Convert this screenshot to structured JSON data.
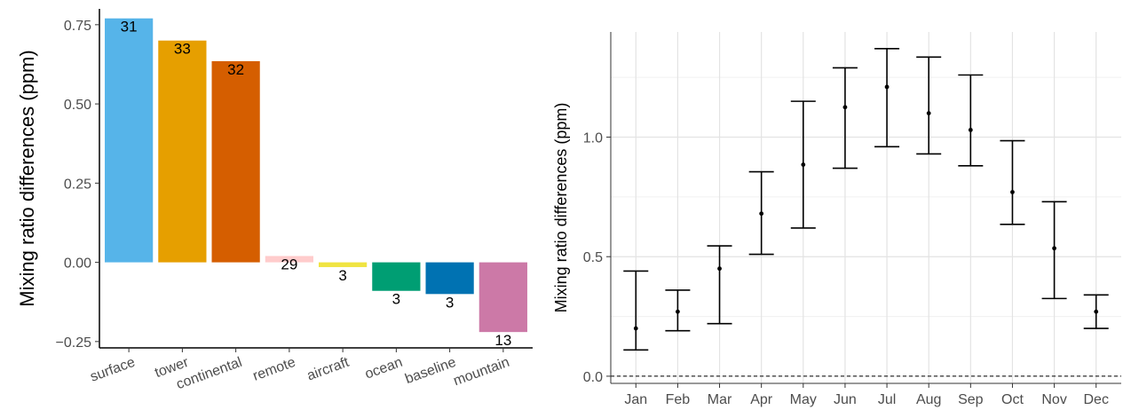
{
  "chart_data": [
    {
      "type": "bar",
      "ylabel": "Mixing ratio differences (ppm)",
      "ylim": [
        -0.27,
        0.8
      ],
      "yticks": [
        -0.25,
        0.0,
        0.25,
        0.5,
        0.75
      ],
      "ytick_labels": [
        "−0.25",
        "0.00",
        "0.25",
        "0.50",
        "0.75"
      ],
      "grid": false,
      "categories": [
        "surface",
        "tower",
        "continental",
        "remote",
        "aircraft",
        "ocean",
        "baseline",
        "mountain"
      ],
      "values": [
        0.77,
        0.7,
        0.635,
        0.02,
        -0.015,
        -0.09,
        -0.1,
        -0.22
      ],
      "counts": [
        "31",
        "33",
        "32",
        "29",
        "3",
        "3",
        "3",
        "13"
      ],
      "colors": [
        "#56B4E9",
        "#E69F00",
        "#D55E00",
        "#FFCCCC",
        "#F0E442",
        "#009E73",
        "#0072B2",
        "#CC79A7"
      ]
    },
    {
      "type": "errorbar",
      "ylabel": "Mixing ratio differences (ppm)",
      "ylim": [
        -0.03,
        1.44
      ],
      "yticks": [
        0.0,
        0.5,
        1.0
      ],
      "ytick_labels": [
        "0.0",
        "0.5",
        "1.0"
      ],
      "grid": true,
      "reference_line": 0.0,
      "categories": [
        "Jan",
        "Feb",
        "Mar",
        "Apr",
        "May",
        "Jun",
        "Jul",
        "Aug",
        "Sep",
        "Oct",
        "Nov",
        "Dec"
      ],
      "mean": [
        0.2,
        0.27,
        0.45,
        0.68,
        0.885,
        1.125,
        1.21,
        1.1,
        1.03,
        0.77,
        0.535,
        0.27
      ],
      "lower": [
        0.11,
        0.19,
        0.22,
        0.51,
        0.62,
        0.87,
        0.96,
        0.93,
        0.88,
        0.635,
        0.325,
        0.2
      ],
      "upper": [
        0.44,
        0.36,
        0.545,
        0.855,
        1.15,
        1.29,
        1.37,
        1.335,
        1.26,
        0.985,
        0.73,
        0.34
      ]
    }
  ]
}
